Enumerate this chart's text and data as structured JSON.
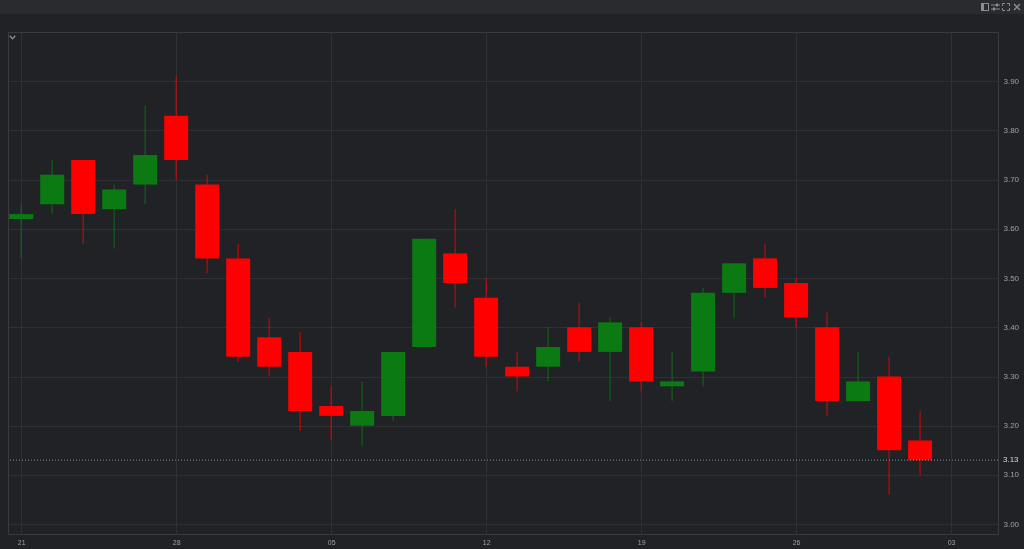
{
  "chart_data": {
    "type": "candlestick",
    "categories": [
      "21",
      null,
      null,
      null,
      null,
      "28",
      null,
      null,
      null,
      null,
      "05",
      null,
      null,
      null,
      null,
      "12",
      null,
      null,
      null,
      null,
      "19",
      null,
      null,
      null,
      null,
      "26",
      null,
      null,
      null,
      null,
      "03"
    ],
    "ohlc": [
      [
        3.62,
        3.65,
        3.54,
        3.63
      ],
      [
        3.65,
        3.74,
        3.63,
        3.71
      ],
      [
        3.74,
        3.74,
        3.57,
        3.63
      ],
      [
        3.64,
        3.69,
        3.56,
        3.68
      ],
      [
        3.69,
        3.85,
        3.65,
        3.75
      ],
      [
        3.83,
        3.91,
        3.7,
        3.74
      ],
      [
        3.69,
        3.71,
        3.51,
        3.54
      ],
      [
        3.54,
        3.57,
        3.33,
        3.34
      ],
      [
        3.38,
        3.42,
        3.3,
        3.32
      ],
      [
        3.35,
        3.39,
        3.19,
        3.23
      ],
      [
        3.24,
        3.28,
        3.17,
        3.22
      ],
      [
        3.2,
        3.29,
        3.16,
        3.23
      ],
      [
        3.22,
        3.35,
        3.21,
        3.35
      ],
      [
        3.36,
        3.58,
        3.36,
        3.58
      ],
      [
        3.55,
        3.64,
        3.44,
        3.49
      ],
      [
        3.46,
        3.5,
        3.32,
        3.34
      ],
      [
        3.32,
        3.35,
        3.27,
        3.3
      ],
      [
        3.32,
        3.4,
        3.29,
        3.36
      ],
      [
        3.4,
        3.45,
        3.33,
        3.35
      ],
      [
        3.35,
        3.42,
        3.25,
        3.41
      ],
      [
        3.4,
        3.41,
        3.27,
        3.29
      ],
      [
        3.28,
        3.35,
        3.25,
        3.29
      ],
      [
        3.31,
        3.48,
        3.28,
        3.47
      ],
      [
        3.47,
        3.53,
        3.42,
        3.53
      ],
      [
        3.54,
        3.57,
        3.46,
        3.48
      ],
      [
        3.49,
        3.5,
        3.4,
        3.42
      ],
      [
        3.4,
        3.43,
        3.22,
        3.25
      ],
      [
        3.25,
        3.35,
        3.25,
        3.29
      ],
      [
        3.3,
        3.34,
        3.06,
        3.15
      ],
      [
        3.17,
        3.23,
        3.1,
        3.13
      ],
      null
    ],
    "colors": [
      "#0b7a13",
      "#0b7a13",
      "#ff0000",
      "#0b7a13",
      "#0b7a13",
      "#ff0000",
      "#ff0000",
      "#ff0000",
      "#ff0000",
      "#ff0000",
      "#ff0000",
      "#0b7a13",
      "#0b7a13",
      "#0b7a13",
      "#ff0000",
      "#ff0000",
      "#ff0000",
      "#0b7a13",
      "#ff0000",
      "#0b7a13",
      "#ff0000",
      "#0b7a13",
      "#0b7a13",
      "#0b7a13",
      "#ff0000",
      "#ff0000",
      "#ff0000",
      "#0b7a13",
      "#ff0000",
      "#ff0000",
      null
    ],
    "ylim": [
      2.98,
      4.0
    ],
    "yticks": [
      {
        "value": 3.0,
        "label": "3.00"
      },
      {
        "value": 3.1,
        "label": "3.10"
      },
      {
        "value": 3.2,
        "label": "3.20"
      },
      {
        "value": 3.3,
        "label": "3.30"
      },
      {
        "value": 3.4,
        "label": "3.40"
      },
      {
        "value": 3.5,
        "label": "3.50"
      },
      {
        "value": 3.6,
        "label": "3.60"
      },
      {
        "value": 3.7,
        "label": "3.70"
      },
      {
        "value": 3.8,
        "label": "3.80"
      },
      {
        "value": 3.9,
        "label": "3.90"
      }
    ],
    "ref_lines": [
      {
        "axis": "y",
        "value": 3.13,
        "label": "3.13",
        "line_style": "dotted"
      }
    ],
    "grid": true
  }
}
